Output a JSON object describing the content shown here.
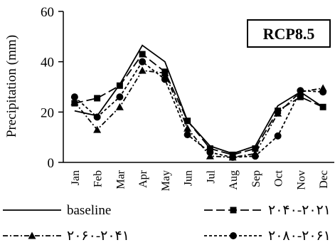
{
  "chart_data": {
    "type": "line",
    "scenario_label": "RCP8.5",
    "ylabel": "Precipitation (mm)",
    "xlabel": "",
    "ylim": [
      0,
      60
    ],
    "yticks": [
      "0",
      "20",
      "40",
      "60"
    ],
    "grid": false,
    "legend_position": "bottom",
    "categories": [
      "Jan",
      "Feb",
      "Mar",
      "Apr",
      "May",
      "Jun",
      "Jul",
      "Aug",
      "Sep",
      "Oct",
      "Nov",
      "Dec"
    ],
    "series": [
      {
        "name": "baseline",
        "style": "solid",
        "marker": "none",
        "values": [
          20.5,
          18.5,
          31,
          46.5,
          40,
          16.5,
          6.5,
          3.5,
          6.5,
          22.5,
          28,
          22
        ]
      },
      {
        "name": "۲۰۴۰-۲۰۲۱",
        "style": "longdash",
        "marker": "square",
        "values": [
          23.5,
          25.5,
          30.5,
          43,
          36,
          16.5,
          5.5,
          3,
          5.5,
          20.5,
          26,
          22
        ]
      },
      {
        "name": "۲۰۶۰-۲۰۴۱",
        "style": "dashdot",
        "marker": "triangle",
        "values": [
          24,
          13,
          22,
          36.5,
          35.5,
          13.5,
          2.5,
          2,
          3.5,
          19.5,
          28,
          29.5
        ]
      },
      {
        "name": "۲۰۸۰-۲۰۶۱",
        "style": "dash",
        "marker": "circle",
        "values": [
          26,
          18,
          26,
          40,
          33,
          11,
          4,
          2,
          2.5,
          10.5,
          28.5,
          28
        ]
      }
    ]
  }
}
